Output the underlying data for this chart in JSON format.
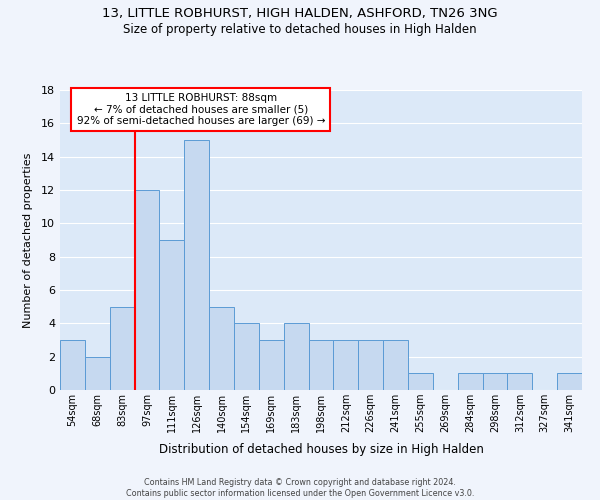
{
  "title1": "13, LITTLE ROBHURST, HIGH HALDEN, ASHFORD, TN26 3NG",
  "title2": "Size of property relative to detached houses in High Halden",
  "xlabel": "Distribution of detached houses by size in High Halden",
  "ylabel": "Number of detached properties",
  "footnote": "Contains HM Land Registry data © Crown copyright and database right 2024.\nContains public sector information licensed under the Open Government Licence v3.0.",
  "annotation_line1": "13 LITTLE ROBHURST: 88sqm",
  "annotation_line2": "← 7% of detached houses are smaller (5)",
  "annotation_line3": "92% of semi-detached houses are larger (69) →",
  "bar_labels": [
    "54sqm",
    "68sqm",
    "83sqm",
    "97sqm",
    "111sqm",
    "126sqm",
    "140sqm",
    "154sqm",
    "169sqm",
    "183sqm",
    "198sqm",
    "212sqm",
    "226sqm",
    "241sqm",
    "255sqm",
    "269sqm",
    "284sqm",
    "298sqm",
    "312sqm",
    "327sqm",
    "341sqm"
  ],
  "bar_values": [
    3,
    2,
    5,
    12,
    9,
    15,
    5,
    4,
    3,
    4,
    3,
    3,
    3,
    3,
    1,
    0,
    1,
    1,
    1,
    0,
    1
  ],
  "bar_color": "#c6d9f0",
  "bar_edge_color": "#5b9bd5",
  "red_line_index": 2.5,
  "ylim": [
    0,
    18
  ],
  "yticks": [
    0,
    2,
    4,
    6,
    8,
    10,
    12,
    14,
    16,
    18
  ],
  "plot_bg_color": "#dce9f8",
  "fig_bg_color": "#f0f4fc",
  "grid_color": "#ffffff"
}
